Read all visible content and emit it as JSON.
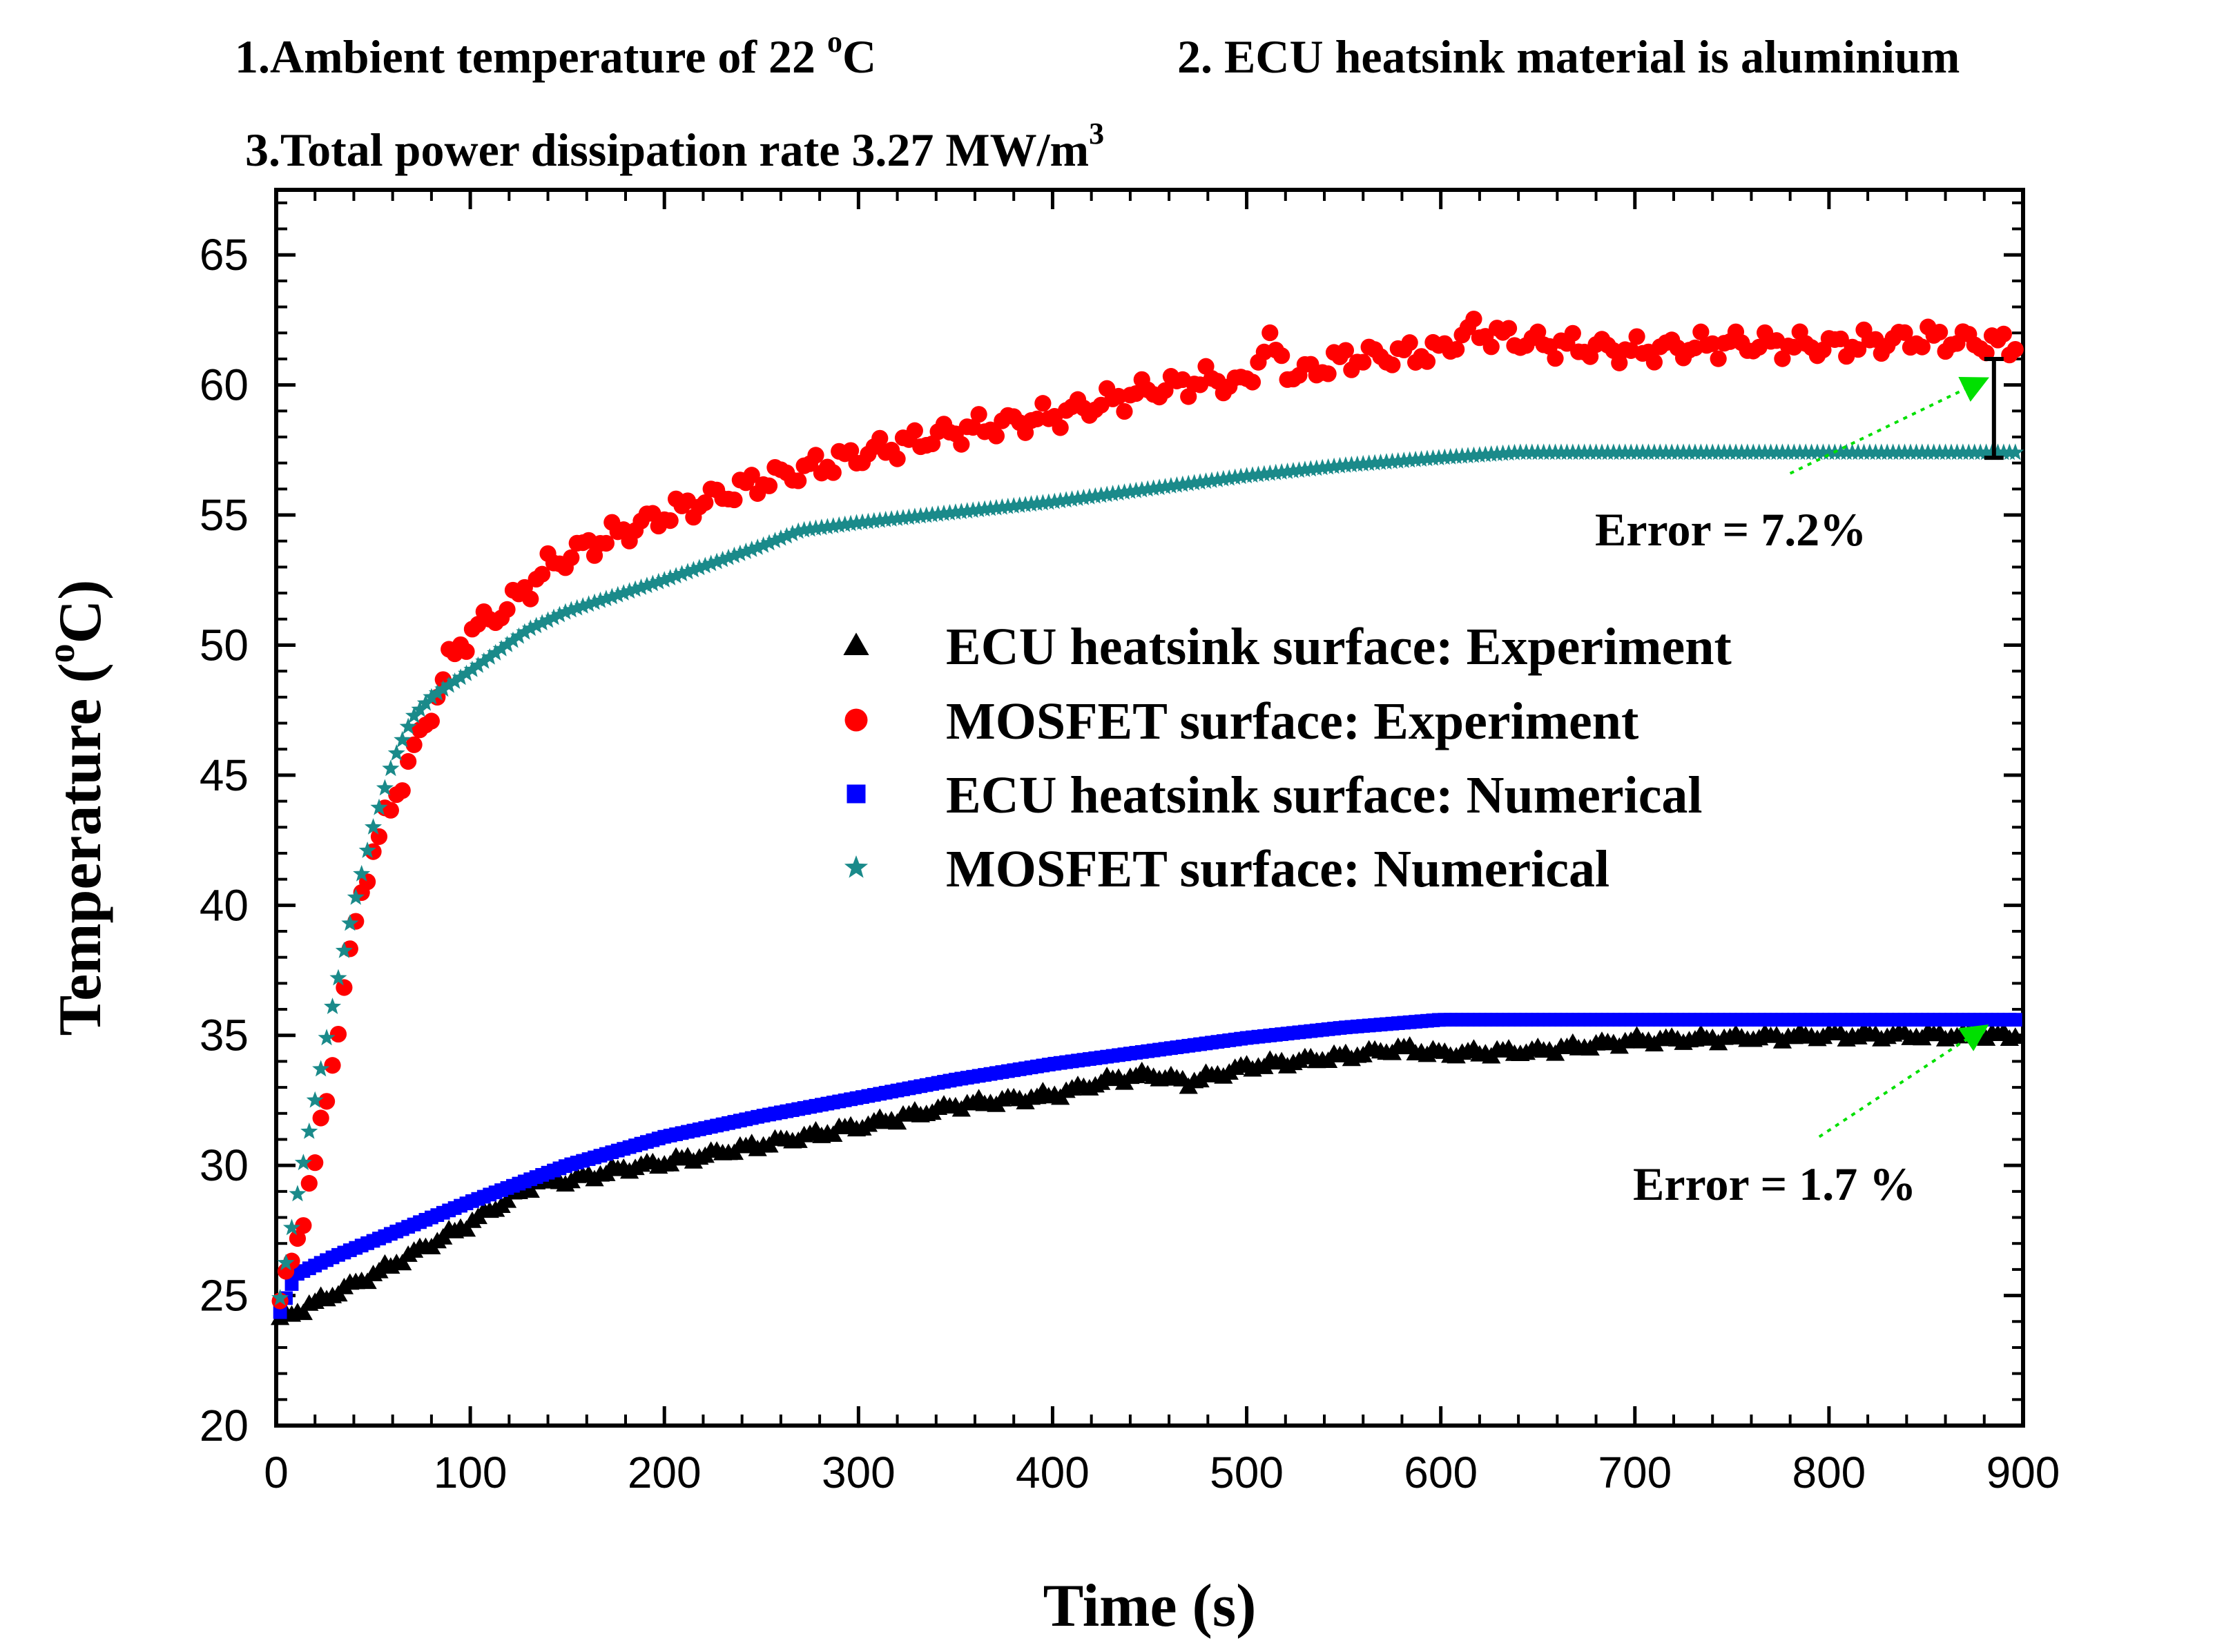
{
  "chart_data": {
    "type": "scatter",
    "notes": {
      "note1": {
        "prefix": "1.Ambient temperature of 22 ",
        "sup": "o",
        "suffix": "C"
      },
      "note2": "2. ECU heatsink material is aluminium",
      "note3": {
        "prefix": "3.Total power dissipation rate 3.27 MW/m",
        "sup": "3"
      }
    },
    "xlabel": "Time (s)",
    "ylabel": {
      "prefix": "Temperature (",
      "sup": "o",
      "suffix": "C)"
    },
    "xlim": [
      0,
      900
    ],
    "ylim": [
      20,
      67.5
    ],
    "x_ticks": [
      0,
      100,
      200,
      300,
      400,
      500,
      600,
      700,
      800,
      900
    ],
    "y_ticks": [
      20,
      25,
      30,
      35,
      40,
      45,
      50,
      55,
      60,
      65
    ],
    "grid": false,
    "legend_position": "center-right",
    "series": [
      {
        "name": "ECU heatsink surface: Experiment",
        "marker": "triangle",
        "color": "#000000",
        "points": [
          [
            0,
            24.0
          ],
          [
            50,
            25.8
          ],
          [
            100,
            27.8
          ],
          [
            135,
            29.4
          ],
          [
            150,
            29.4
          ],
          [
            180,
            29.9
          ],
          [
            200,
            30.1
          ],
          [
            250,
            30.8
          ],
          [
            300,
            31.5
          ],
          [
            350,
            32.3
          ],
          [
            400,
            32.7
          ],
          [
            430,
            33.3
          ],
          [
            450,
            33.5
          ],
          [
            470,
            33.2
          ],
          [
            500,
            33.8
          ],
          [
            550,
            34.2
          ],
          [
            580,
            34.5
          ],
          [
            600,
            34.3
          ],
          [
            650,
            34.4
          ],
          [
            700,
            34.8
          ],
          [
            750,
            34.9
          ],
          [
            800,
            35.0
          ],
          [
            850,
            35.0
          ],
          [
            900,
            35.0
          ]
        ]
      },
      {
        "name": "MOSFET surface: Experiment",
        "marker": "circle",
        "color": "#ff0000",
        "points": [
          [
            0,
            24.0
          ],
          [
            10,
            27.0
          ],
          [
            20,
            30.0
          ],
          [
            30,
            34.5
          ],
          [
            45,
            41.0
          ],
          [
            60,
            44.0
          ],
          [
            80,
            47.5
          ],
          [
            90,
            49.5
          ],
          [
            100,
            50.5
          ],
          [
            120,
            51.5
          ],
          [
            140,
            53.0
          ],
          [
            160,
            53.8
          ],
          [
            200,
            55.0
          ],
          [
            250,
            56.3
          ],
          [
            300,
            57.3
          ],
          [
            350,
            58.2
          ],
          [
            400,
            58.8
          ],
          [
            450,
            59.8
          ],
          [
            480,
            60.2
          ],
          [
            500,
            60.0
          ],
          [
            510,
            61.7
          ],
          [
            525,
            60.3
          ],
          [
            550,
            61.0
          ],
          [
            600,
            61.3
          ],
          [
            615,
            62.1
          ],
          [
            650,
            61.6
          ],
          [
            700,
            61.3
          ],
          [
            750,
            61.6
          ],
          [
            800,
            61.5
          ],
          [
            850,
            61.8
          ],
          [
            900,
            61.5
          ]
        ]
      },
      {
        "name": "ECU heatsink surface: Numerical",
        "marker": "square",
        "color": "#0000ff",
        "points": [
          [
            0,
            24.0
          ],
          [
            10,
            25.8
          ],
          [
            30,
            26.5
          ],
          [
            50,
            27.1
          ],
          [
            70,
            27.7
          ],
          [
            100,
            28.6
          ],
          [
            150,
            30.0
          ],
          [
            200,
            31.1
          ],
          [
            250,
            31.9
          ],
          [
            300,
            32.6
          ],
          [
            350,
            33.3
          ],
          [
            400,
            33.9
          ],
          [
            450,
            34.4
          ],
          [
            500,
            34.9
          ],
          [
            550,
            35.3
          ],
          [
            600,
            35.6
          ],
          [
            650,
            35.6
          ],
          [
            700,
            35.6
          ],
          [
            800,
            35.6
          ],
          [
            900,
            35.6
          ]
        ]
      },
      {
        "name": "MOSFET surface: Numerical",
        "marker": "star",
        "color": "#1a8a8a",
        "points": [
          [
            0,
            24.0
          ],
          [
            10,
            28.5
          ],
          [
            20,
            32.5
          ],
          [
            30,
            36.5
          ],
          [
            40,
            40.0
          ],
          [
            50,
            43.0
          ],
          [
            60,
            45.5
          ],
          [
            70,
            47.2
          ],
          [
            80,
            48.0
          ],
          [
            100,
            49.0
          ],
          [
            130,
            50.6
          ],
          [
            150,
            51.3
          ],
          [
            200,
            52.5
          ],
          [
            250,
            53.8
          ],
          [
            270,
            54.4
          ],
          [
            300,
            54.7
          ],
          [
            350,
            55.1
          ],
          [
            400,
            55.5
          ],
          [
            450,
            56.0
          ],
          [
            500,
            56.5
          ],
          [
            550,
            56.9
          ],
          [
            600,
            57.2
          ],
          [
            640,
            57.4
          ],
          [
            700,
            57.4
          ],
          [
            800,
            57.4
          ],
          [
            900,
            57.4
          ]
        ]
      }
    ],
    "annotations": [
      {
        "text": "Error = 7.2%",
        "arrow_to": [
          880,
          60.2
        ],
        "arrow_from": [
          780,
          56.6
        ],
        "error_bar": {
          "x": 885,
          "y_low": 57.2,
          "y_high": 61.0
        }
      },
      {
        "text": "Error = 1.7 %",
        "arrow_to": [
          880,
          35.3
        ],
        "arrow_from": [
          795,
          31.1
        ]
      }
    ]
  }
}
